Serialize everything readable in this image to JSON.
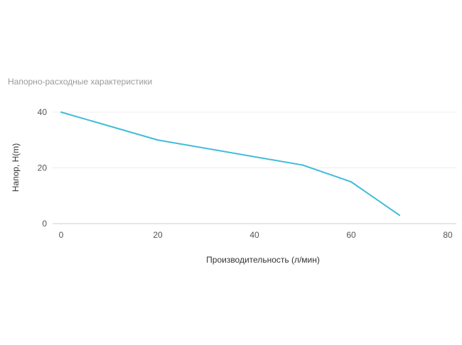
{
  "chart_data": {
    "type": "line",
    "title": "Напорно-расходные характеристики",
    "xlabel": "Производительность (л/мин)",
    "ylabel": "Напор, H(m)",
    "xlim": [
      0,
      80
    ],
    "ylim": [
      0,
      40
    ],
    "xticks": [
      0,
      20,
      40,
      60,
      80
    ],
    "yticks": [
      0,
      20,
      40
    ],
    "grid": true,
    "series": [
      {
        "color": "#3fbcd8",
        "points": [
          {
            "x": 0,
            "y": 40
          },
          {
            "x": 20,
            "y": 30
          },
          {
            "x": 50,
            "y": 21
          },
          {
            "x": 60,
            "y": 15
          },
          {
            "x": 70,
            "y": 3
          }
        ]
      }
    ]
  }
}
